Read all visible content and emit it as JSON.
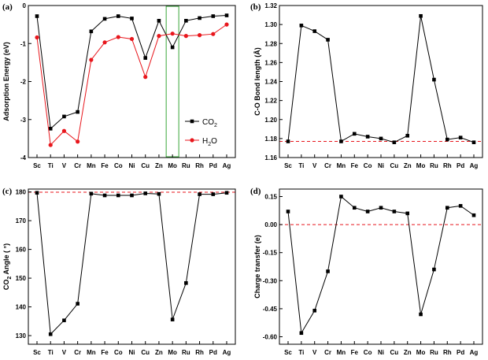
{
  "chart_data": [
    {
      "panel": "(a)",
      "type": "line",
      "categories": [
        "Sc",
        "Ti",
        "V",
        "Cr",
        "Mn",
        "Fe",
        "Co",
        "Ni",
        "Cu",
        "Zn",
        "Mo",
        "Ru",
        "Rh",
        "Pd",
        "Ag"
      ],
      "ylabel": "Adsorption Energy (eV)",
      "ylim": [
        -4,
        0
      ],
      "yticks": [
        "0",
        "-1",
        "-2",
        "-3",
        "-4"
      ],
      "ytick_values": [
        0,
        -1,
        -2,
        -3,
        -4
      ],
      "highlight_category": "Mo",
      "highlight_color": "#3aa63a",
      "legend_position": "lower-right",
      "series": [
        {
          "name": "CO",
          "subscript": "2",
          "color": "#000000",
          "marker": "square",
          "values": [
            -0.28,
            -3.24,
            -2.92,
            -2.8,
            -0.68,
            -0.35,
            -0.28,
            -0.34,
            -1.38,
            -0.4,
            -1.1,
            -0.4,
            -0.33,
            -0.28,
            -0.26
          ]
        },
        {
          "name": "H",
          "subscript": "2",
          "suffix": "O",
          "color": "#e8161c",
          "marker": "circle",
          "values": [
            -0.84,
            -3.67,
            -3.3,
            -3.58,
            -1.43,
            -0.97,
            -0.83,
            -0.88,
            -1.88,
            -0.8,
            -0.74,
            -0.8,
            -0.78,
            -0.75,
            -0.5
          ]
        }
      ]
    },
    {
      "panel": "(b)",
      "type": "line",
      "categories": [
        "Sc",
        "Ti",
        "V",
        "Cr",
        "Mn",
        "Fe",
        "Co",
        "Ni",
        "Cu",
        "Zn",
        "Mo",
        "Ru",
        "Rh",
        "Pd",
        "Ag"
      ],
      "ylabel": "C-O Bond length (Å)",
      "ylim": [
        1.16,
        1.32
      ],
      "yticks": [
        "1.16",
        "1.18",
        "1.20",
        "1.22",
        "1.24",
        "1.26",
        "1.28",
        "1.30",
        "1.32"
      ],
      "ytick_values": [
        1.16,
        1.18,
        1.2,
        1.22,
        1.24,
        1.26,
        1.28,
        1.3,
        1.32
      ],
      "reference_line": 1.177,
      "reference_color": "#e8161c",
      "series": [
        {
          "name": "",
          "color": "#000000",
          "marker": "square",
          "values": [
            1.177,
            1.299,
            1.293,
            1.284,
            1.177,
            1.185,
            1.182,
            1.18,
            1.176,
            1.183,
            1.309,
            1.242,
            1.179,
            1.181,
            1.176
          ]
        }
      ]
    },
    {
      "panel": "(c)",
      "type": "line",
      "categories": [
        "Sc",
        "Ti",
        "V",
        "Cr",
        "Mn",
        "Fe",
        "Co",
        "Ni",
        "Cu",
        "Zn",
        "Mo",
        "Ru",
        "Rh",
        "Pd",
        "Ag"
      ],
      "ylabel_main": "CO",
      "ylabel_sub": "2",
      "ylabel_rest": " Angle ( °)",
      "ylim": [
        127,
        181
      ],
      "yticks": [
        "130",
        "140",
        "150",
        "160",
        "170",
        "180"
      ],
      "ytick_values": [
        130,
        140,
        150,
        160,
        170,
        180
      ],
      "reference_line": 179.9,
      "reference_color": "#e8161c",
      "series": [
        {
          "name": "",
          "color": "#000000",
          "marker": "square",
          "values": [
            179.7,
            130.5,
            135.3,
            141.1,
            179.4,
            178.8,
            178.8,
            178.8,
            179.5,
            179.3,
            135.6,
            148.3,
            179.2,
            179.2,
            179.7
          ]
        }
      ]
    },
    {
      "panel": "(d)",
      "type": "line",
      "categories": [
        "Sc",
        "Ti",
        "V",
        "Cr",
        "Mn",
        "Fe",
        "Co",
        "Ni",
        "Cu",
        "Zn",
        "Mo",
        "Ru",
        "Rh",
        "Pd",
        "Ag"
      ],
      "ylabel": "Charge transfer (e)",
      "ylim": [
        -0.64,
        0.19
      ],
      "yticks": [
        "0.15",
        "0.00",
        "-0.15",
        "-0.30",
        "-0.45",
        "-0.60"
      ],
      "ytick_values": [
        0.15,
        0,
        -0.15,
        -0.3,
        -0.45,
        -0.6
      ],
      "reference_line": 0,
      "reference_color": "#e8161c",
      "series": [
        {
          "name": "",
          "color": "#000000",
          "marker": "square",
          "values": [
            0.07,
            -0.58,
            -0.46,
            -0.25,
            0.15,
            0.09,
            0.07,
            0.09,
            0.07,
            0.06,
            -0.48,
            -0.24,
            0.09,
            0.1,
            0.05
          ]
        }
      ]
    }
  ]
}
